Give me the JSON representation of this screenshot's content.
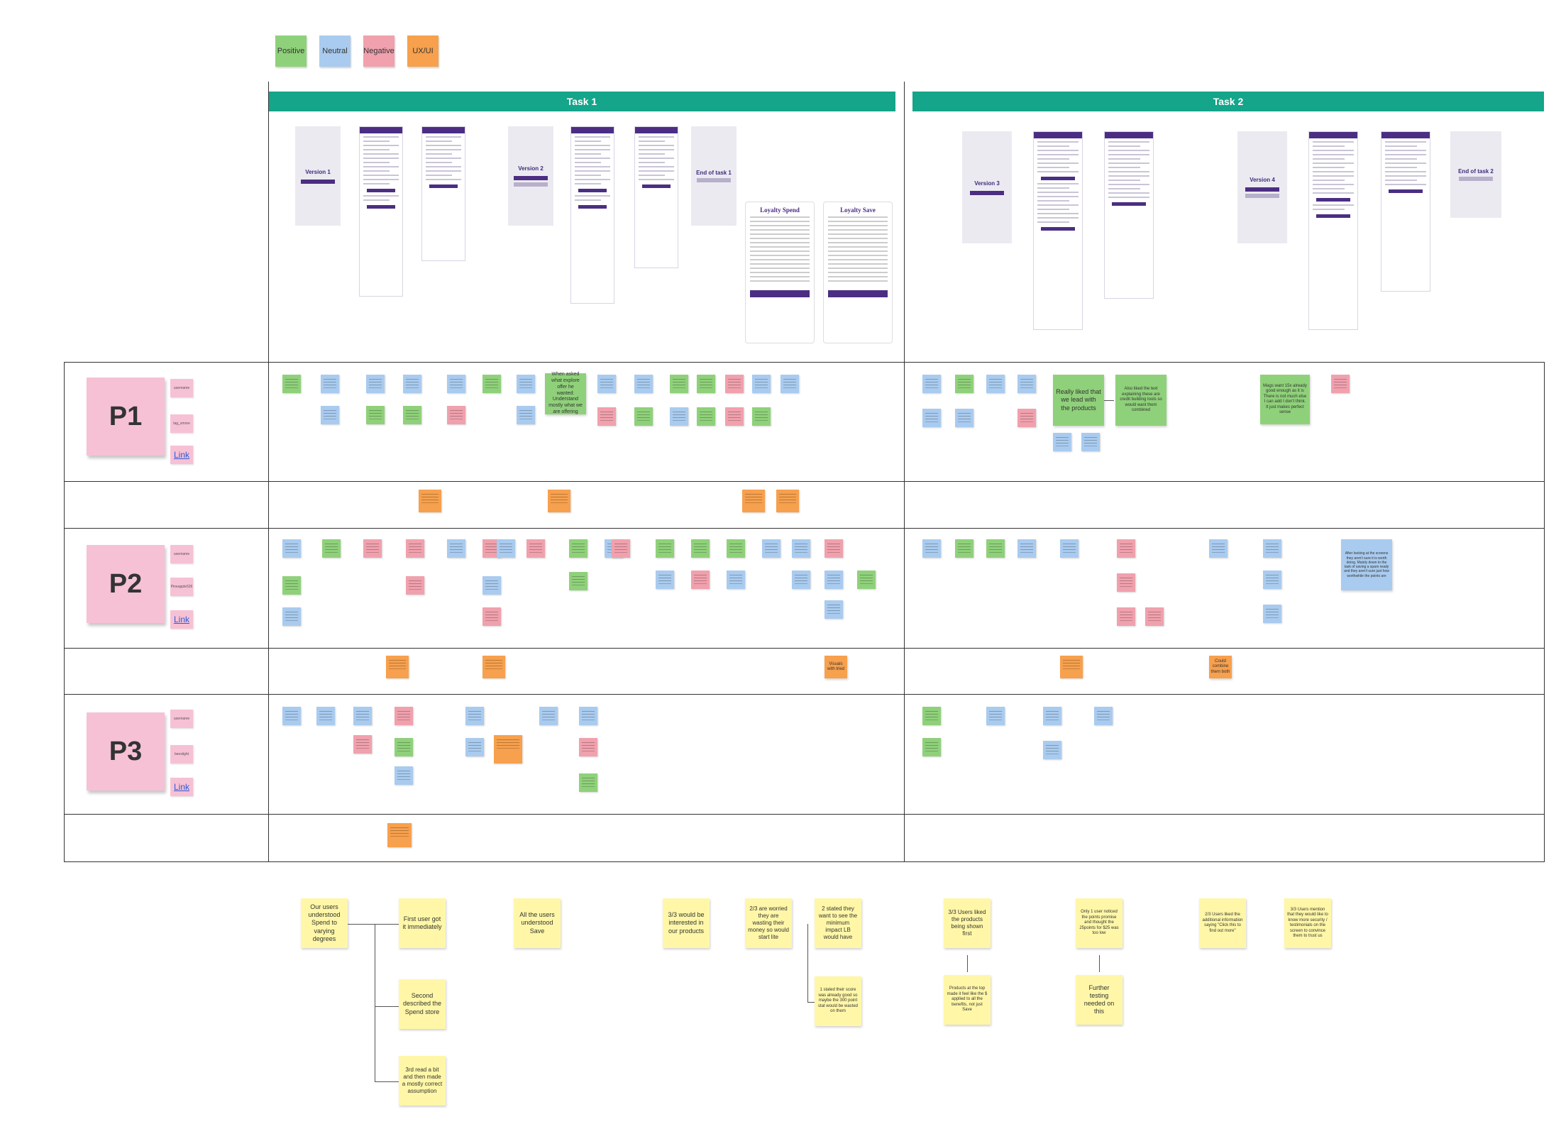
{
  "legend": [
    {
      "label": "Positive",
      "color": "#8fd17a"
    },
    {
      "label": "Neutral",
      "color": "#a9cbef"
    },
    {
      "label": "Negative",
      "color": "#f0a1ad"
    },
    {
      "label": "UX/UI",
      "color": "#f7a04d"
    }
  ],
  "tasks": [
    {
      "label": "Task 1"
    },
    {
      "label": "Task 2"
    }
  ],
  "versions": {
    "v1": "Version 1",
    "v2": "Version 2",
    "v3": "Version 3",
    "v4": "Version 4",
    "end1": "End of task 1",
    "end2": "End of task 2"
  },
  "cards": {
    "spend": "Loyalty Spend",
    "save": "Loyalty Save"
  },
  "participants": [
    {
      "label": "P1",
      "meta": [
        "username",
        "tag_xmore"
      ],
      "link": "Link"
    },
    {
      "label": "P2",
      "meta": [
        "username",
        "Pineapple526"
      ],
      "link": "Link"
    },
    {
      "label": "P3",
      "meta": [
        "username",
        "beeslight"
      ],
      "link": "Link"
    }
  ],
  "p1_notes": {
    "n1": "Likes the brand colours",
    "n2": "Wanted to look at the first",
    "n3": "Really liked that we lead with the products",
    "n4": "Also liked the text explaining these are credit building tools so would want them combined",
    "n5": "Mags want 15x already good enough as it is There is not much else I can add I don't think. It just makes perfect sense",
    "n6": "When asked what explore offer he wanted: Understand mostly what we are offering"
  },
  "p2_notes": {
    "n1": "Vanilla with freedom Neutral",
    "n2": "After looking at the screens they aren't sure it is worth doing. Mainly down to the task of saving a spare ready and they aren't sure just how worthwhile the points are"
  },
  "ux_notes": {
    "p2a": "Visuals with tried",
    "p2b": "Could combine them both"
  },
  "findings": {
    "f1": "Our users understood Spend to varying degrees",
    "f2": "First user got it immediately",
    "f3": "Second described the Spend store",
    "f4": "3rd read a bit and then made a mostly correct assumption",
    "f5": "All the users understood Save",
    "f6": "3/3 would be interested in our products",
    "f7": "2/3 are worried they are wasting their money so would start lite",
    "f8": "2 stated they want to see the minimum impact LB would have",
    "f9": "1 stated their score was already good so maybe the 300 point stat would be wasted on them",
    "f10": "3/3 Users liked the products being shown first",
    "f11": "Products at the top made it feel like the $ applied to all the benefits, not just Save",
    "f12": "Only 1 user noticed the points promise and thought the 25points for $25 was too low",
    "f13": "Further testing needed on this",
    "f14": "2/3 Users liked the additional information saying \"Click this to find out more\"",
    "f15": "3/3 Users mention that they would like to know more security / testimonials on the screen to convince them to trust us"
  }
}
